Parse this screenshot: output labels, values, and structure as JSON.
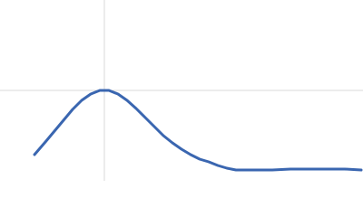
{
  "chart_data": {
    "type": "line",
    "x": [
      38,
      50,
      60,
      70,
      80,
      90,
      100,
      110,
      115,
      120,
      130,
      140,
      150,
      160,
      170,
      180,
      190,
      200,
      210,
      220,
      230,
      240,
      250,
      260,
      280,
      300,
      320,
      340,
      360,
      380,
      398
    ],
    "series": [
      {
        "color": "#3a66b0",
        "values": [
          29,
          43,
          55,
          67,
          79,
          89,
          96,
          100,
          100,
          100,
          96,
          89,
          80,
          70,
          60,
          50,
          42,
          35,
          29,
          24,
          21,
          17,
          14,
          12,
          12,
          12,
          13,
          13,
          13,
          13,
          12
        ]
      }
    ],
    "xlim": [
      0,
      400
    ],
    "ylim": [
      0,
      200
    ],
    "xticks": [
      115
    ],
    "yticks": [
      100
    ],
    "grid": true
  }
}
